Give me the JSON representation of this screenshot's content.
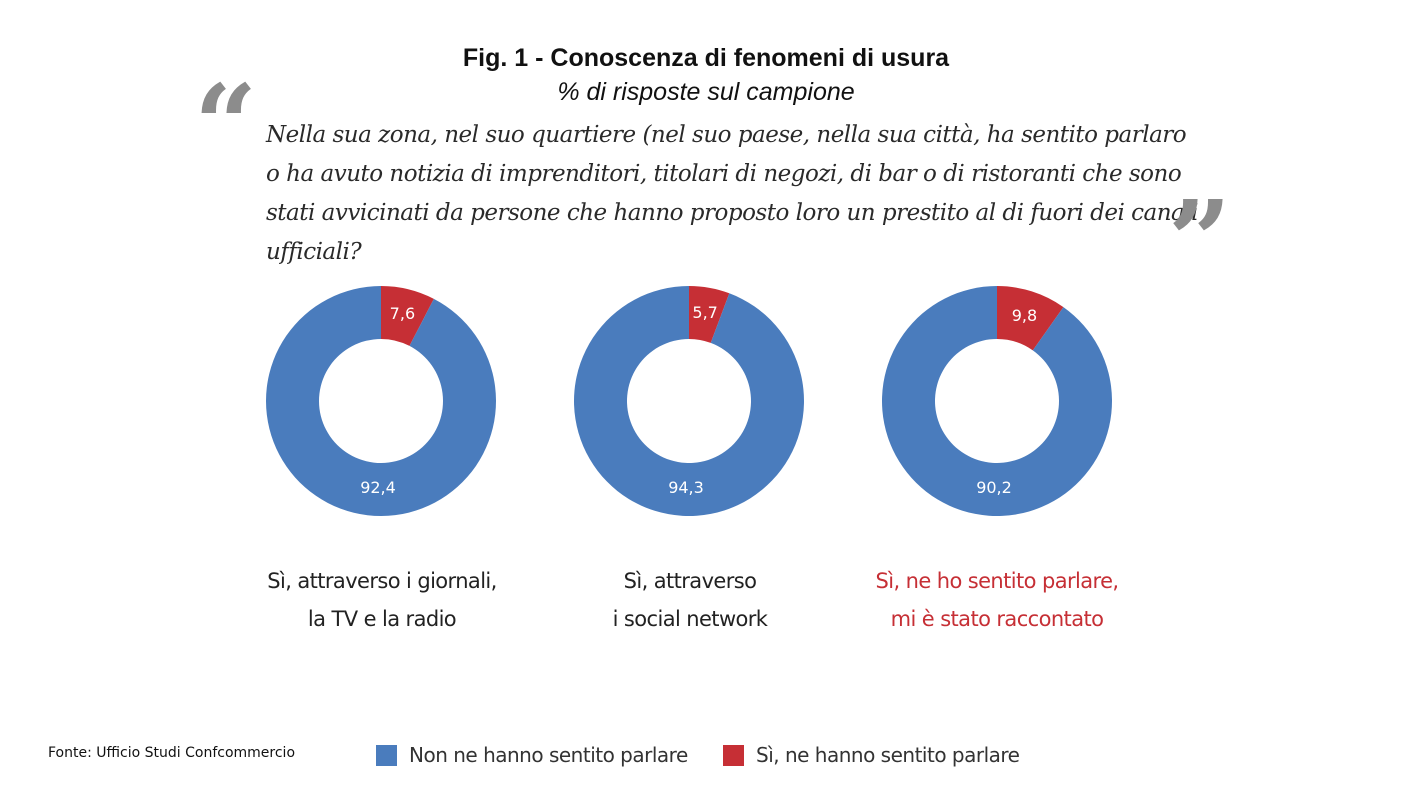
{
  "chart_data": {
    "type": "donut",
    "title": "Fig. 1 - Conoscenza di fenomeni di usura",
    "subtitle": "% di risposte sul campione",
    "question": "Nella sua zona, nel suo quartiere (nel suo paese, nella sua città, ha sentito parlaro o ha avuto notizia di imprenditori, titolari di negozi, di bar o di ristoranti che sono stati avvicinati da persone che hanno proposto loro un prestito al di fuori dei canali ufficiali?",
    "quote_open": "“",
    "quote_close": "”",
    "colors": {
      "no": "#4a7cbd",
      "yes": "#c62f35"
    },
    "legend": [
      "Non ne hanno sentito parlare",
      "Sì, ne hanno sentito parlare"
    ],
    "charts": [
      {
        "caption": [
          "Sì, attraverso i giornali,",
          "la TV e la radio"
        ],
        "no": 92.4,
        "yes": 7.6,
        "no_label": "92,4",
        "yes_label": "7,6",
        "caption_color": "#222222"
      },
      {
        "caption": [
          "Sì, attraverso",
          "i social network"
        ],
        "no": 94.3,
        "yes": 5.7,
        "no_label": "94,3",
        "yes_label": "5,7",
        "caption_color": "#222222"
      },
      {
        "caption": [
          "Sì, ne ho sentito parlare,",
          "mi è stato raccontato"
        ],
        "no": 90.2,
        "yes": 9.8,
        "no_label": "90,2",
        "yes_label": "9,8",
        "caption_color": "#c62f35"
      }
    ]
  },
  "source": "Fonte: Ufficio Studi Confcommercio"
}
